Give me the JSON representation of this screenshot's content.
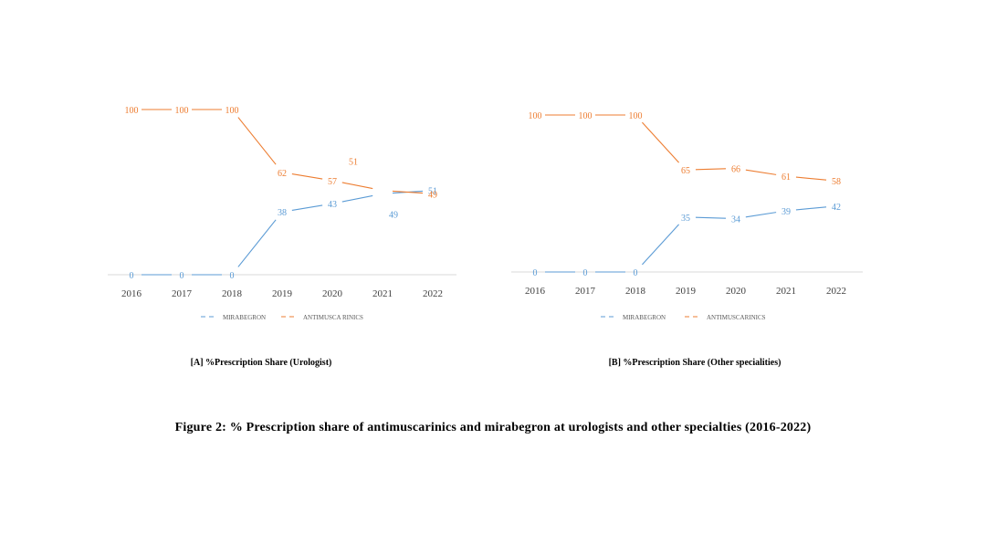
{
  "colors": {
    "mirabegron": "#5b9bd5",
    "antimuscarinics": "#ed7d31",
    "axis": "#d9d9d9",
    "tick_text": "#404040"
  },
  "figure_caption": "Figure 2: % Prescription share of antimuscarinics and mirabegron at urologists and other specialties (2016-2022)",
  "chart_data": [
    {
      "type": "line",
      "caption": "[A] %Prescription Share (Urologist)",
      "categories": [
        "2016",
        "2017",
        "2018",
        "2019",
        "2020",
        "2021",
        "2022"
      ],
      "legend_placement": "bottom",
      "grid": false,
      "ylim": [
        0,
        100
      ],
      "series": [
        {
          "name": "MIRABEGRON",
          "values": [
            0,
            0,
            0,
            38,
            43,
            49,
            51
          ]
        },
        {
          "name": "ANTIMUSCA RINICS",
          "values": [
            100,
            100,
            100,
            62,
            57,
            51,
            49
          ]
        }
      ]
    },
    {
      "type": "line",
      "caption": "[B] %Prescription Share (Other specialities)",
      "categories": [
        "2016",
        "2017",
        "2018",
        "2019",
        "2020",
        "2021",
        "2022"
      ],
      "legend_placement": "bottom",
      "grid": false,
      "ylim": [
        0,
        100
      ],
      "series": [
        {
          "name": "MIRABEGRON",
          "values": [
            0,
            0,
            0,
            35,
            34,
            39,
            42
          ]
        },
        {
          "name": "ANTIMUSCARINICS",
          "values": [
            100,
            100,
            100,
            65,
            66,
            61,
            58
          ]
        }
      ]
    }
  ]
}
